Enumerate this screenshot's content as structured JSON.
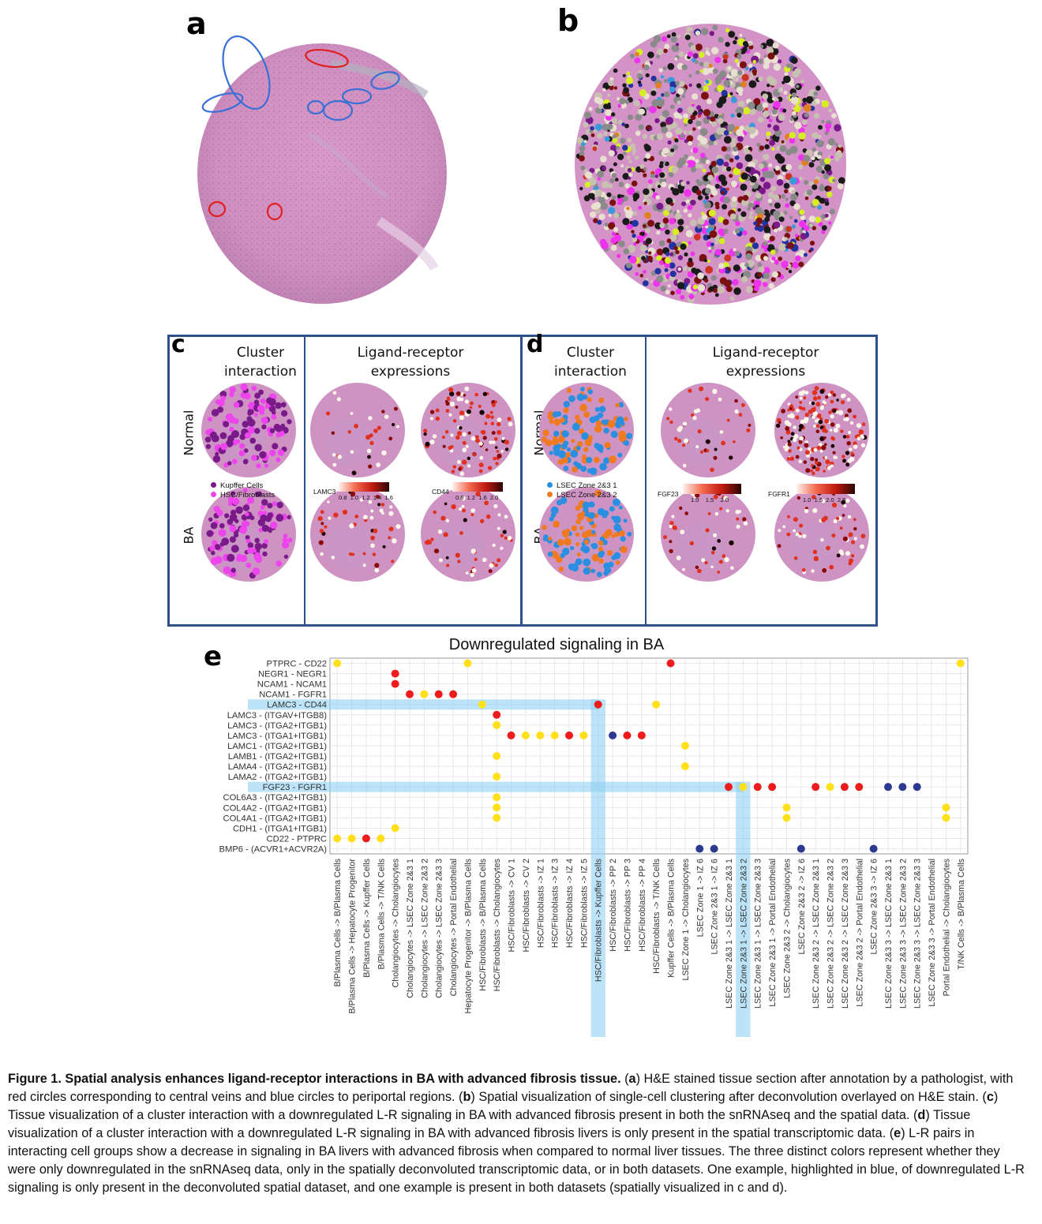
{
  "panel_letters": {
    "a": "a",
    "b": "b",
    "c": "c",
    "d": "d",
    "e": "e"
  },
  "panel_c": {
    "header_cluster": "Cluster interaction",
    "header_lr": "Ligand-receptor expressions",
    "row_normal": "Normal",
    "row_ba": "BA",
    "legend": [
      {
        "label": "Kupffer Cells",
        "color": "#7a1a8a"
      },
      {
        "label": "HSC/Fibroblasts",
        "color": "#ee44ee"
      }
    ],
    "scales": [
      {
        "name": "LAMC3",
        "ticks": [
          "0.8",
          "1.0",
          "1.2",
          "1.4",
          "1.6"
        ]
      },
      {
        "name": "CD44",
        "ticks": [
          "0.8",
          "1.2",
          "1.6",
          "2.0"
        ]
      }
    ]
  },
  "panel_d": {
    "header_cluster": "Cluster interaction",
    "header_lr": "Ligand-receptor expressions",
    "row_normal": "Normal",
    "row_ba": "BA",
    "legend": [
      {
        "label": "LSEC Zone 2&3 1",
        "color": "#2a8fe0"
      },
      {
        "label": "LSEC Zone 2&3 2",
        "color": "#f07a20"
      }
    ],
    "scales": [
      {
        "name": "FGF23",
        "ticks": [
          "1.0",
          "1.5",
          "2.0"
        ]
      },
      {
        "name": "FGFR1",
        "ticks": [
          "1.0",
          "1.5",
          "2.0",
          "2.5"
        ]
      }
    ]
  },
  "chart_data": {
    "type": "scatter",
    "title": "Downregulated signaling in BA",
    "color_key": {
      "yellow": "#ffe01a",
      "red": "#ee1c1c",
      "navy": "#2b3990"
    },
    "y_categories": [
      "PTPRC - CD22",
      "NEGR1 - NEGR1",
      "NCAM1 - NCAM1",
      "NCAM1 - FGFR1",
      "LAMC3 - CD44",
      "LAMC3 - (ITGAV+ITGB8)",
      "LAMC3 - (ITGA2+ITGB1)",
      "LAMC3 - (ITGA1+ITGB1)",
      "LAMC1 - (ITGA2+ITGB1)",
      "LAMB1 - (ITGA2+ITGB1)",
      "LAMA4 - (ITGA2+ITGB1)",
      "LAMA2 - (ITGA2+ITGB1)",
      "FGF23 - FGFR1",
      "COL6A3 - (ITGA2+ITGB1)",
      "COL4A2 - (ITGA2+ITGB1)",
      "COL4A1 - (ITGA2+ITGB1)",
      "CDH1 - (ITGA1+ITGB1)",
      "CD22 - PTPRC",
      "BMP6 - (ACVR1+ACVR2A)"
    ],
    "x_categories": [
      "B/Plasma Cells -> B/Plasma Cells",
      "B/Plasma Cells -> Hepatocyte Progenitor",
      "B/Plasma Cells -> Kupffer Cells",
      "B/Plasma Cells -> T/NK Cells",
      "Cholangiocytes -> Cholangiocytes",
      "Cholangiocytes -> LSEC Zone 2&3 1",
      "Cholangiocytes -> LSEC Zone 2&3 2",
      "Cholangiocytes -> LSEC Zone 2&3 3",
      "Cholangiocytes -> Portal Endothelial",
      "Hepatocyte Progenitor -> B/Plasma Cells",
      "HSC/Fibroblasts -> B/Plasma Cells",
      "HSC/Fibroblasts -> Cholangiocytes",
      "HSC/Fibroblasts -> CV 1",
      "HSC/Fibroblasts -> CV 2",
      "HSC/Fibroblasts -> IZ 1",
      "HSC/Fibroblasts -> IZ 3",
      "HSC/Fibroblasts -> IZ 4",
      "HSC/Fibroblasts -> IZ 5",
      "HSC/Fibroblasts -> Kupffer Cells",
      "HSC/Fibroblasts -> PP 2",
      "HSC/Fibroblasts -> PP 3",
      "HSC/Fibroblasts -> PP 4",
      "HSC/Fibroblasts -> T/NK Cells",
      "Kupffer Cells -> B/Plasma Cells",
      "LSEC Zone 1 -> Cholangiocytes",
      "LSEC Zone 1 -> IZ 6",
      "LSEC Zone 2&3 1 -> IZ 6",
      "LSEC Zone 2&3 1 -> LSEC Zone 2&3 1",
      "LSEC Zone 2&3 1 -> LSEC Zone 2&3 2",
      "LSEC Zone 2&3 1 -> LSEC Zone 2&3 3",
      "LSEC Zone 2&3 1 -> Portal Endothelial",
      "LSEC Zone 2&3 2 -> Cholangiocytes",
      "LSEC Zone 2&3 2 -> IZ 6",
      "LSEC Zone 2&3 2 -> LSEC Zone 2&3 1",
      "LSEC Zone 2&3 2 -> LSEC Zone 2&3 2",
      "LSEC Zone 2&3 2 -> LSEC Zone 2&3 3",
      "LSEC Zone 2&3 2 -> Portal Endothelial",
      "LSEC Zone 2&3 3 -> IZ 6",
      "LSEC Zone 2&3 3 -> LSEC Zone 2&3 1",
      "LSEC Zone 2&3 3 -> LSEC Zone 2&3 2",
      "LSEC Zone 2&3 3 -> LSEC Zone 2&3 3",
      "LSEC Zone 2&3 3 -> Portal Endothelial",
      "Portal Endothelial -> Cholangiocytes",
      "T/NK Cells -> B/Plasma Cells"
    ],
    "points": [
      {
        "x": 0,
        "y": "PTPRC - CD22",
        "c": "yellow"
      },
      {
        "x": 9,
        "y": "PTPRC - CD22",
        "c": "yellow"
      },
      {
        "x": 23,
        "y": "PTPRC - CD22",
        "c": "red"
      },
      {
        "x": 43,
        "y": "PTPRC - CD22",
        "c": "yellow"
      },
      {
        "x": 4,
        "y": "NEGR1 - NEGR1",
        "c": "red"
      },
      {
        "x": 4,
        "y": "NCAM1 - NCAM1",
        "c": "red"
      },
      {
        "x": 5,
        "y": "NCAM1 - FGFR1",
        "c": "red"
      },
      {
        "x": 6,
        "y": "NCAM1 - FGFR1",
        "c": "yellow"
      },
      {
        "x": 7,
        "y": "NCAM1 - FGFR1",
        "c": "red"
      },
      {
        "x": 8,
        "y": "NCAM1 - FGFR1",
        "c": "red"
      },
      {
        "x": 10,
        "y": "LAMC3 - CD44",
        "c": "yellow"
      },
      {
        "x": 18,
        "y": "LAMC3 - CD44",
        "c": "red"
      },
      {
        "x": 22,
        "y": "LAMC3 - CD44",
        "c": "yellow"
      },
      {
        "x": 11,
        "y": "LAMC3 - (ITGAV+ITGB8)",
        "c": "red"
      },
      {
        "x": 11,
        "y": "LAMC3 - (ITGA2+ITGB1)",
        "c": "yellow"
      },
      {
        "x": 12,
        "y": "LAMC3 - (ITGA1+ITGB1)",
        "c": "red"
      },
      {
        "x": 13,
        "y": "LAMC3 - (ITGA1+ITGB1)",
        "c": "yellow"
      },
      {
        "x": 14,
        "y": "LAMC3 - (ITGA1+ITGB1)",
        "c": "yellow"
      },
      {
        "x": 15,
        "y": "LAMC3 - (ITGA1+ITGB1)",
        "c": "yellow"
      },
      {
        "x": 16,
        "y": "LAMC3 - (ITGA1+ITGB1)",
        "c": "red"
      },
      {
        "x": 17,
        "y": "LAMC3 - (ITGA1+ITGB1)",
        "c": "yellow"
      },
      {
        "x": 19,
        "y": "LAMC3 - (ITGA1+ITGB1)",
        "c": "navy"
      },
      {
        "x": 20,
        "y": "LAMC3 - (ITGA1+ITGB1)",
        "c": "red"
      },
      {
        "x": 21,
        "y": "LAMC3 - (ITGA1+ITGB1)",
        "c": "red"
      },
      {
        "x": 24,
        "y": "LAMC1 - (ITGA2+ITGB1)",
        "c": "yellow"
      },
      {
        "x": 11,
        "y": "LAMB1 - (ITGA2+ITGB1)",
        "c": "yellow"
      },
      {
        "x": 24,
        "y": "LAMA4 - (ITGA2+ITGB1)",
        "c": "yellow"
      },
      {
        "x": 11,
        "y": "LAMA2 - (ITGA2+ITGB1)",
        "c": "yellow"
      },
      {
        "x": 27,
        "y": "FGF23 - FGFR1",
        "c": "red"
      },
      {
        "x": 28,
        "y": "FGF23 - FGFR1",
        "c": "yellow"
      },
      {
        "x": 29,
        "y": "FGF23 - FGFR1",
        "c": "red"
      },
      {
        "x": 30,
        "y": "FGF23 - FGFR1",
        "c": "red"
      },
      {
        "x": 33,
        "y": "FGF23 - FGFR1",
        "c": "red"
      },
      {
        "x": 34,
        "y": "FGF23 - FGFR1",
        "c": "yellow"
      },
      {
        "x": 35,
        "y": "FGF23 - FGFR1",
        "c": "red"
      },
      {
        "x": 36,
        "y": "FGF23 - FGFR1",
        "c": "red"
      },
      {
        "x": 38,
        "y": "FGF23 - FGFR1",
        "c": "navy"
      },
      {
        "x": 39,
        "y": "FGF23 - FGFR1",
        "c": "navy"
      },
      {
        "x": 40,
        "y": "FGF23 - FGFR1",
        "c": "navy"
      },
      {
        "x": 11,
        "y": "COL6A3 - (ITGA2+ITGB1)",
        "c": "yellow"
      },
      {
        "x": 11,
        "y": "COL4A2 - (ITGA2+ITGB1)",
        "c": "yellow"
      },
      {
        "x": 31,
        "y": "COL4A2 - (ITGA2+ITGB1)",
        "c": "yellow"
      },
      {
        "x": 42,
        "y": "COL4A2 - (ITGA2+ITGB1)",
        "c": "yellow"
      },
      {
        "x": 11,
        "y": "COL4A1 - (ITGA2+ITGB1)",
        "c": "yellow"
      },
      {
        "x": 31,
        "y": "COL4A1 - (ITGA2+ITGB1)",
        "c": "yellow"
      },
      {
        "x": 42,
        "y": "COL4A1 - (ITGA2+ITGB1)",
        "c": "yellow"
      },
      {
        "x": 4,
        "y": "CDH1 - (ITGA1+ITGB1)",
        "c": "yellow"
      },
      {
        "x": 0,
        "y": "CD22 - PTPRC",
        "c": "yellow"
      },
      {
        "x": 1,
        "y": "CD22 - PTPRC",
        "c": "yellow"
      },
      {
        "x": 2,
        "y": "CD22 - PTPRC",
        "c": "red"
      },
      {
        "x": 3,
        "y": "CD22 - PTPRC",
        "c": "yellow"
      },
      {
        "x": 25,
        "y": "BMP6 - (ACVR1+ACVR2A)",
        "c": "navy"
      },
      {
        "x": 26,
        "y": "BMP6 - (ACVR1+ACVR2A)",
        "c": "navy"
      },
      {
        "x": 32,
        "y": "BMP6 - (ACVR1+ACVR2A)",
        "c": "navy"
      },
      {
        "x": 37,
        "y": "BMP6 - (ACVR1+ACVR2A)",
        "c": "navy"
      }
    ],
    "highlight_rows": [
      "LAMC3 - CD44",
      "FGF23 - FGFR1"
    ],
    "highlight_cols": [
      "HSC/Fibroblasts -> Kupffer Cells",
      "LSEC Zone 2&3 1 -> LSEC Zone 2&3 2"
    ],
    "grid": true
  },
  "caption": {
    "lead": "Figure 1. Spatial analysis enhances ligand-receptor interactions in BA with advanced fibrosis tissue.",
    "segments": [
      {
        "t": " ("
      },
      {
        "t": "a",
        "b": true
      },
      {
        "t": ") H&E stained tissue section after annotation by a pathologist, with red circles corresponding to central veins and blue circles to periportal regions. ("
      },
      {
        "t": "b",
        "b": true
      },
      {
        "t": ") Spatial visualization of single-cell clustering after deconvolution overlayed on H&E stain. ("
      },
      {
        "t": "c",
        "b": true
      },
      {
        "t": ") Tissue visualization of a cluster interaction with a downregulated L-R signaling in BA with advanced fibrosis present in both the snRNAseq and the spatial data. ("
      },
      {
        "t": "d",
        "b": true
      },
      {
        "t": ") Tissue visualization of a cluster interaction with a downregulated L-R signaling in BA with advanced fibrosis livers is only present in the spatial transcriptomic data. ("
      },
      {
        "t": "e",
        "b": true
      },
      {
        "t": ") L-R pairs in interacting cell groups show a decrease in signaling in BA livers with advanced fibrosis when compared to normal liver tissues. The three distinct colors represent whether they were only downregulated in the snRNAseq data, only in the spatially deconvoluted transcriptomic data, or in both datasets. One example, highlighted in blue, of downregulated L-R signaling is only present in the deconvoluted spatial dataset, and one example is present in both datasets (spatially visualized in c and d)."
      }
    ]
  }
}
